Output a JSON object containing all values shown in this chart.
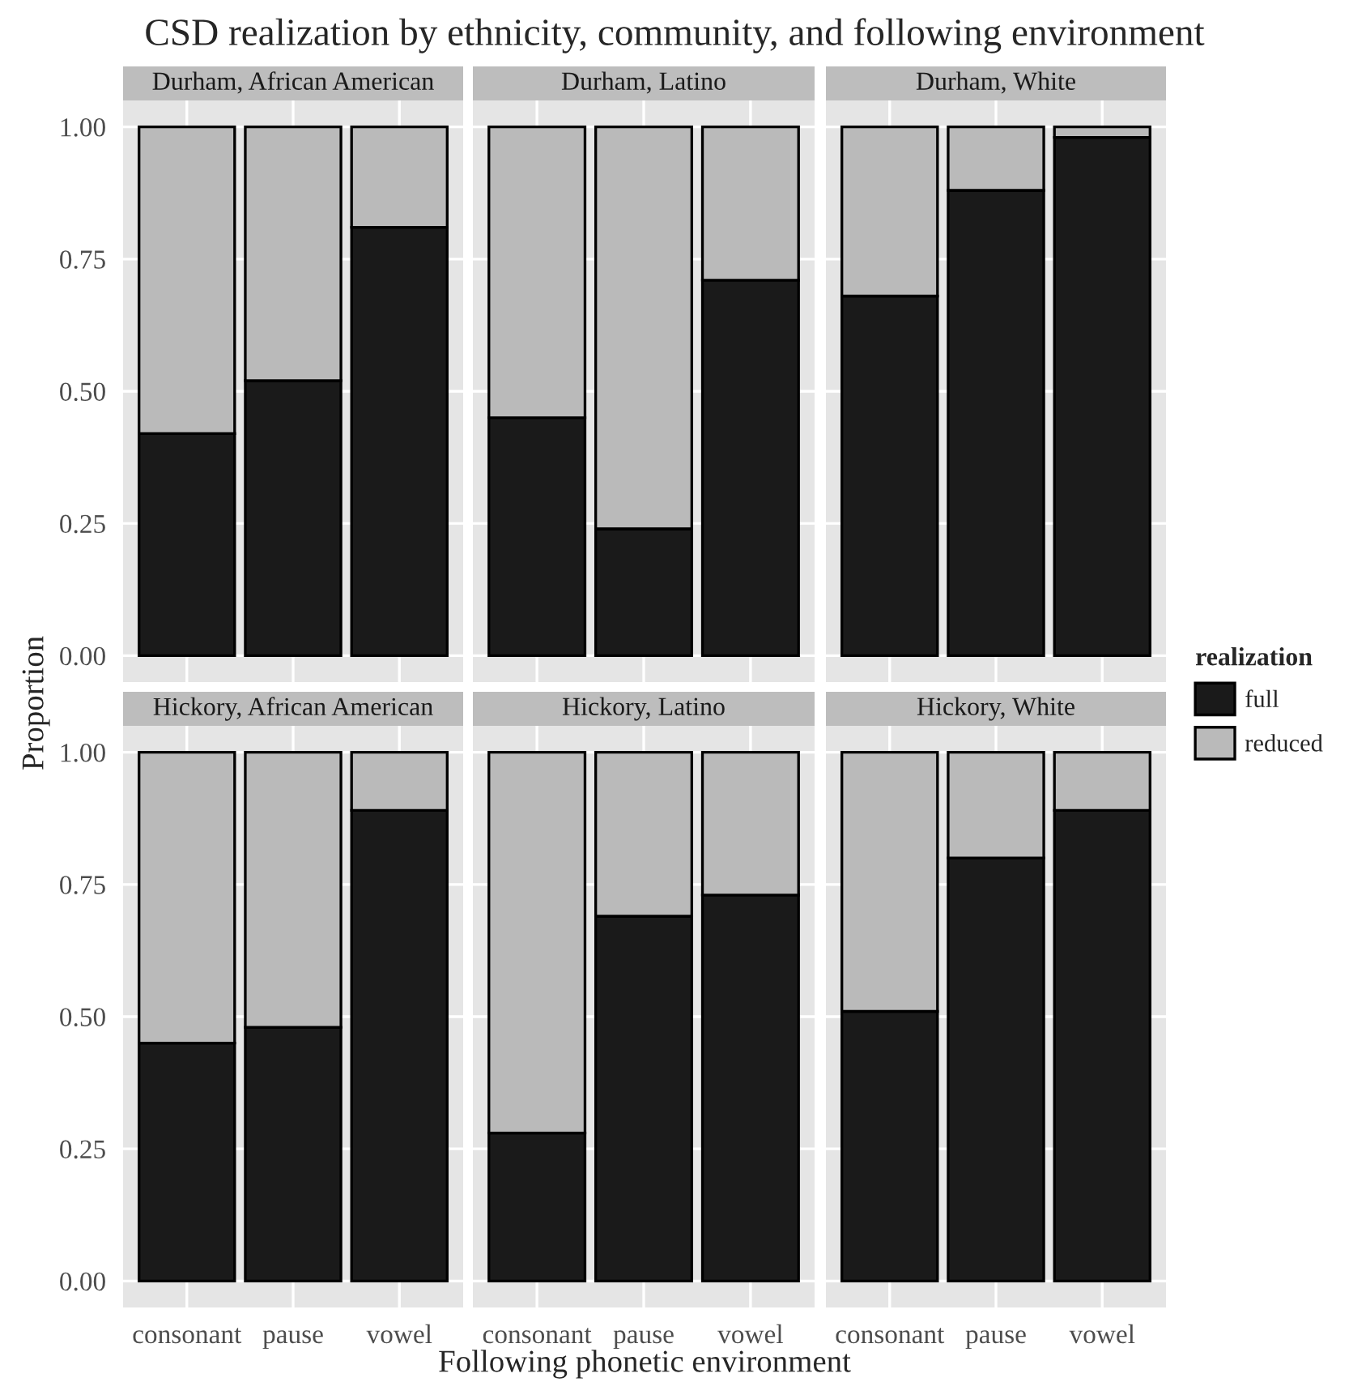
{
  "chart_data": [
    {
      "type": "bar",
      "stacked": true,
      "title": "Durham, African American",
      "annotations": [
        "CSD realization by ethnicity, community, and following environment"
      ],
      "legend": "right",
      "legend_title": "realization",
      "categories": [
        "consonant",
        "pause",
        "vowel"
      ],
      "ylim": [
        -0.05,
        1.05
      ],
      "yticks": [
        {
          "value": 0,
          "label": "0.00"
        },
        {
          "value": 0.25,
          "label": "0.25"
        },
        {
          "value": 0.5,
          "label": "0.50"
        },
        {
          "value": 0.75,
          "label": "0.75"
        },
        {
          "value": 1,
          "label": "1.00"
        }
      ],
      "grid": true,
      "tick_labels": "y",
      "series": [
        {
          "name": "full",
          "color": "#1a1a1a",
          "values": [
            0.42,
            0.52,
            0.81
          ]
        },
        {
          "name": "reduced",
          "color": "#bababa",
          "values": [
            0.58,
            0.48,
            0.19
          ]
        }
      ]
    },
    {
      "type": "bar",
      "stacked": true,
      "title": "Durham, Latino",
      "categories": [
        "consonant",
        "pause",
        "vowel"
      ],
      "ylim": [
        -0.05,
        1.05
      ],
      "yticks": [
        {
          "value": 0,
          "label": "0.00"
        },
        {
          "value": 0.25,
          "label": "0.25"
        },
        {
          "value": 0.5,
          "label": "0.50"
        },
        {
          "value": 0.75,
          "label": "0.75"
        },
        {
          "value": 1,
          "label": "1.00"
        }
      ],
      "grid": true,
      "tick_labels": false,
      "series": [
        {
          "name": "full",
          "color": "#1a1a1a",
          "values": [
            0.45,
            0.24,
            0.71
          ]
        },
        {
          "name": "reduced",
          "color": "#bababa",
          "values": [
            0.55,
            0.76,
            0.29
          ]
        }
      ]
    },
    {
      "type": "bar",
      "stacked": true,
      "title": "Durham, White",
      "categories": [
        "consonant",
        "pause",
        "vowel"
      ],
      "ylim": [
        -0.05,
        1.05
      ],
      "yticks": [
        {
          "value": 0,
          "label": "0.00"
        },
        {
          "value": 0.25,
          "label": "0.25"
        },
        {
          "value": 0.5,
          "label": "0.50"
        },
        {
          "value": 0.75,
          "label": "0.75"
        },
        {
          "value": 1,
          "label": "1.00"
        }
      ],
      "grid": true,
      "tick_labels": false,
      "series": [
        {
          "name": "full",
          "color": "#1a1a1a",
          "values": [
            0.68,
            0.88,
            0.98
          ]
        },
        {
          "name": "reduced",
          "color": "#bababa",
          "values": [
            0.32,
            0.12,
            0.02
          ]
        }
      ]
    },
    {
      "type": "bar",
      "stacked": true,
      "title": "Hickory, African American",
      "ylabel": "Proportion",
      "categories": [
        "consonant",
        "pause",
        "vowel"
      ],
      "ylim": [
        -0.05,
        1.05
      ],
      "yticks": [
        {
          "value": 0,
          "label": "0.00"
        },
        {
          "value": 0.25,
          "label": "0.25"
        },
        {
          "value": 0.5,
          "label": "0.50"
        },
        {
          "value": 0.75,
          "label": "0.75"
        },
        {
          "value": 1,
          "label": "1.00"
        }
      ],
      "grid": true,
      "series": [
        {
          "name": "full",
          "color": "#1a1a1a",
          "values": [
            0.45,
            0.48,
            0.89
          ]
        },
        {
          "name": "reduced",
          "color": "#bababa",
          "values": [
            0.55,
            0.52,
            0.11
          ]
        }
      ]
    },
    {
      "type": "bar",
      "stacked": true,
      "title": "Hickory, Latino",
      "xlabel": "Following phonetic environment",
      "categories": [
        "consonant",
        "pause",
        "vowel"
      ],
      "ylim": [
        -0.05,
        1.05
      ],
      "yticks": [
        {
          "value": 0,
          "label": "0.00"
        },
        {
          "value": 0.25,
          "label": "0.25"
        },
        {
          "value": 0.5,
          "label": "0.50"
        },
        {
          "value": 0.75,
          "label": "0.75"
        },
        {
          "value": 1,
          "label": "1.00"
        }
      ],
      "grid": true,
      "tick_labels": "x",
      "series": [
        {
          "name": "full",
          "color": "#1a1a1a",
          "values": [
            0.28,
            0.69,
            0.73
          ]
        },
        {
          "name": "reduced",
          "color": "#bababa",
          "values": [
            0.72,
            0.31,
            0.27
          ]
        }
      ]
    },
    {
      "type": "bar",
      "stacked": true,
      "title": "Hickory, White",
      "categories": [
        "consonant",
        "pause",
        "vowel"
      ],
      "ylim": [
        -0.05,
        1.05
      ],
      "yticks": [
        {
          "value": 0,
          "label": "0.00"
        },
        {
          "value": 0.25,
          "label": "0.25"
        },
        {
          "value": 0.5,
          "label": "0.50"
        },
        {
          "value": 0.75,
          "label": "0.75"
        },
        {
          "value": 1,
          "label": "1.00"
        }
      ],
      "grid": true,
      "tick_labels": "x",
      "series": [
        {
          "name": "full",
          "color": "#1a1a1a",
          "values": [
            0.51,
            0.8,
            0.89
          ]
        },
        {
          "name": "reduced",
          "color": "#bababa",
          "values": [
            0.49,
            0.2,
            0.11
          ]
        }
      ]
    }
  ]
}
